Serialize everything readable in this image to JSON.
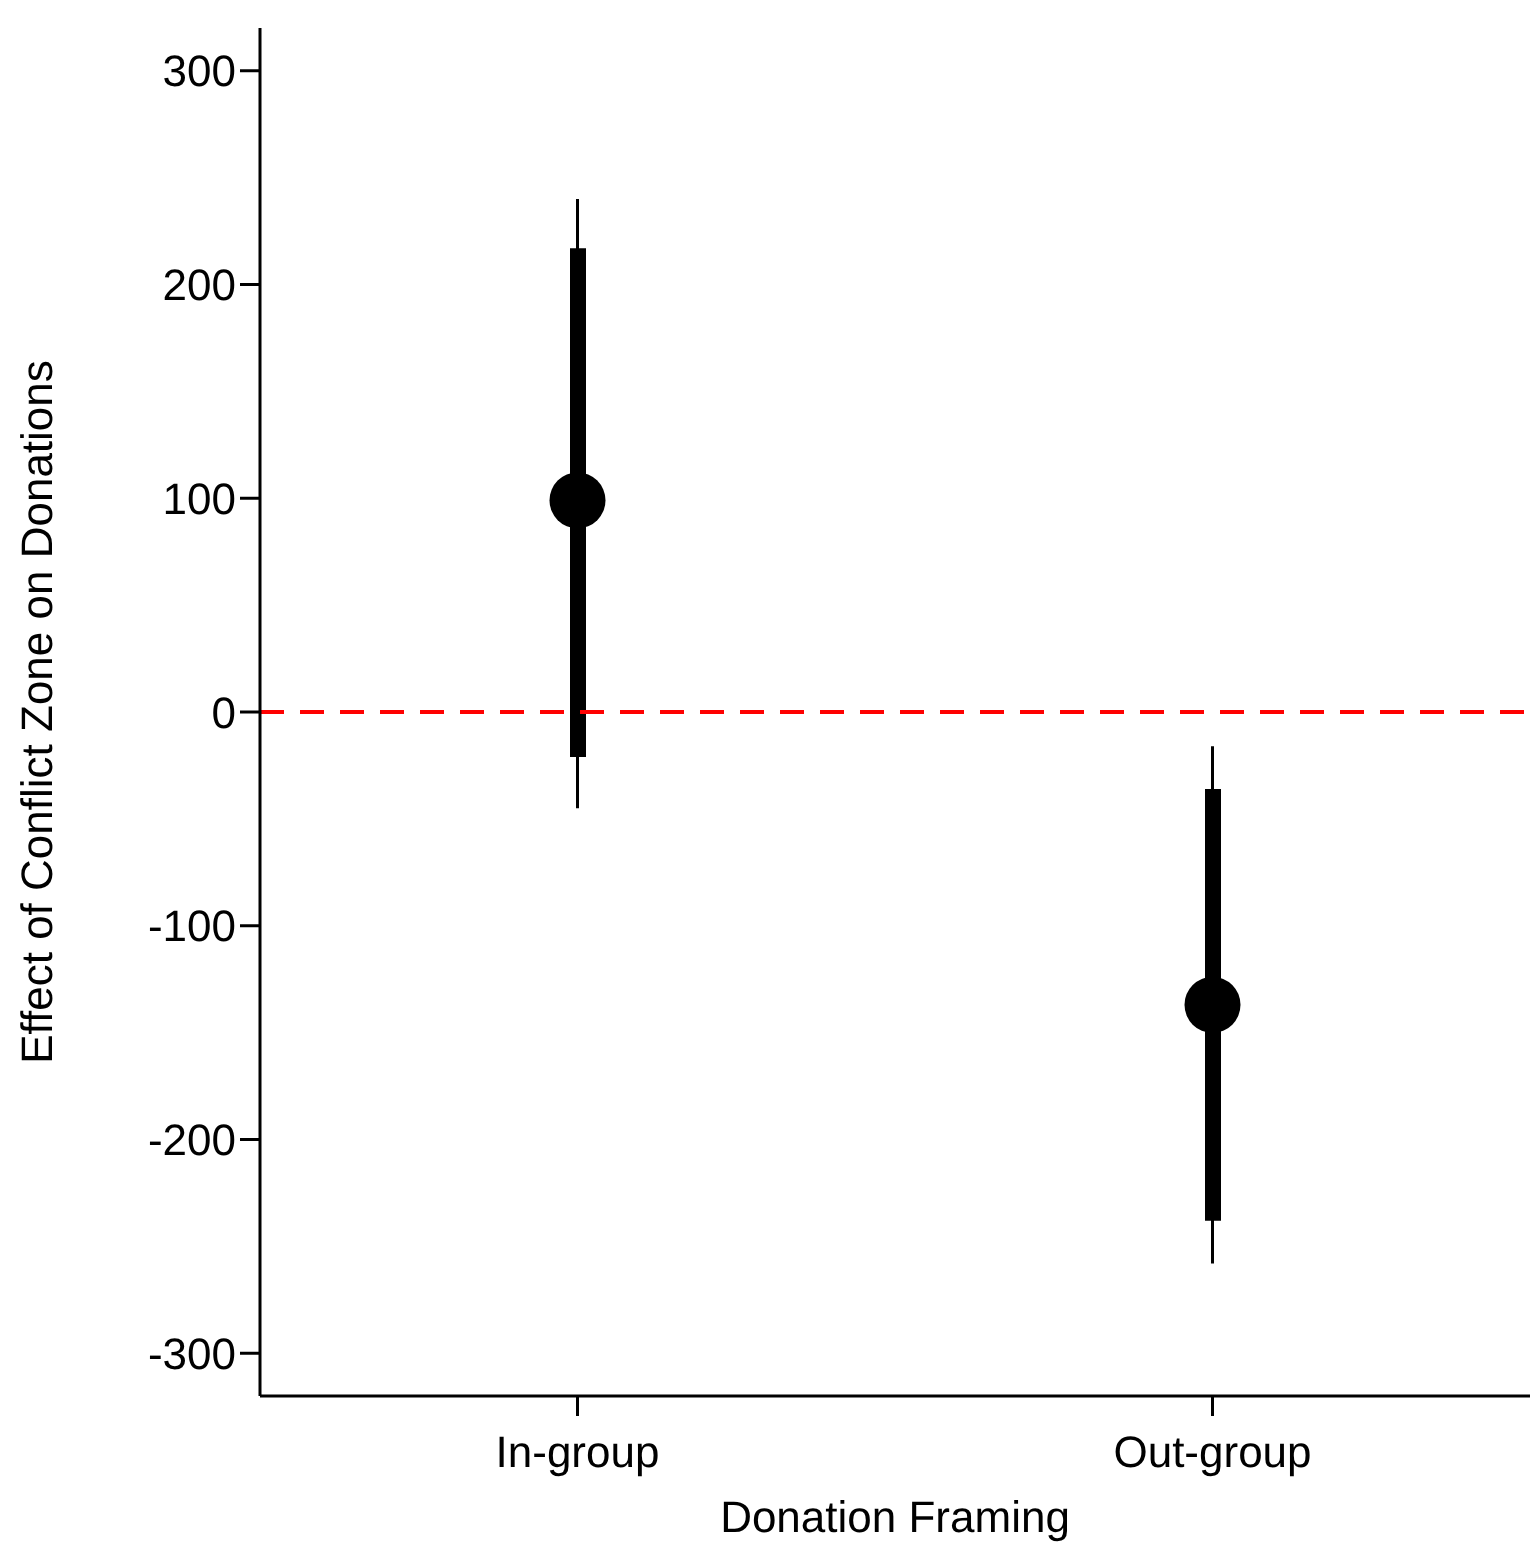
{
  "chart_data": {
    "type": "scatter",
    "xlabel": "Donation Framing",
    "ylabel": "Effect of Conflict Zone on Donations",
    "categories": [
      "In-group",
      "Out-group"
    ],
    "series": [
      {
        "type": "bar",
        "color": "#000000",
        "base": [
          -21,
          -238
        ],
        "values": [
          238,
          202
        ]
      },
      {
        "color": "#000000",
        "values": [
          99,
          -137
        ],
        "errors": [
          [
            -45,
            240
          ],
          [
            -258,
            -16
          ]
        ]
      }
    ],
    "ylim": [
      -320,
      320
    ],
    "yticks": [
      -300,
      -200,
      -100,
      0,
      100,
      200,
      300
    ],
    "ref_lines": [
      {
        "axis": "y",
        "value": 0,
        "color": "#ff0000",
        "line_style": "dashed"
      }
    ],
    "grid": false,
    "legend": false,
    "marker": "circle"
  }
}
